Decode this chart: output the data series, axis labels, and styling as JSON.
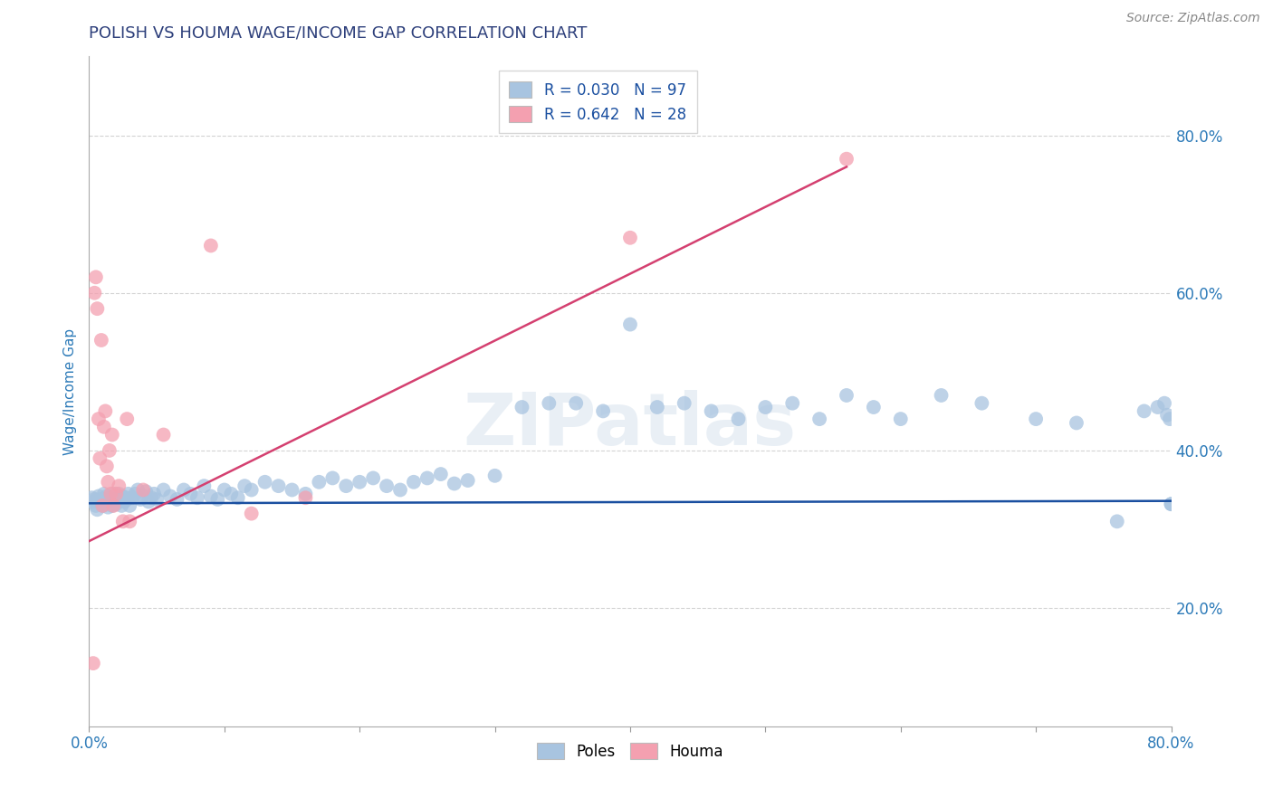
{
  "title": "POLISH VS HOUMA WAGE/INCOME GAP CORRELATION CHART",
  "source": "Source: ZipAtlas.com",
  "ylabel": "Wage/Income Gap",
  "xlim": [
    0.0,
    0.8
  ],
  "ylim": [
    0.05,
    0.9
  ],
  "yticks": [
    0.2,
    0.4,
    0.6,
    0.8
  ],
  "xticks": [
    0.0,
    0.1,
    0.2,
    0.3,
    0.4,
    0.5,
    0.6,
    0.7,
    0.8
  ],
  "xtick_labels": [
    "0.0%",
    "",
    "",
    "",
    "",
    "",
    "",
    "",
    "80.0%"
  ],
  "legend_labels": [
    "Poles",
    "Houma"
  ],
  "legend_R": [
    "R = 0.030",
    "R = 0.642"
  ],
  "legend_N": [
    "N = 97",
    "N = 28"
  ],
  "poles_color": "#a8c4e0",
  "houma_color": "#f4a0b0",
  "poles_line_color": "#1a4fa0",
  "houma_line_color": "#d44070",
  "title_color": "#2c3e7a",
  "tick_color": "#2c7ab8",
  "watermark": "ZIPatlas",
  "background_color": "#ffffff",
  "poles_x": [
    0.002,
    0.003,
    0.004,
    0.005,
    0.006,
    0.007,
    0.008,
    0.009,
    0.01,
    0.011,
    0.012,
    0.013,
    0.014,
    0.015,
    0.016,
    0.017,
    0.018,
    0.019,
    0.02,
    0.021,
    0.022,
    0.023,
    0.024,
    0.025,
    0.026,
    0.027,
    0.028,
    0.029,
    0.03,
    0.032,
    0.034,
    0.036,
    0.038,
    0.04,
    0.042,
    0.044,
    0.046,
    0.048,
    0.05,
    0.055,
    0.06,
    0.065,
    0.07,
    0.075,
    0.08,
    0.085,
    0.09,
    0.095,
    0.1,
    0.105,
    0.11,
    0.115,
    0.12,
    0.13,
    0.14,
    0.15,
    0.16,
    0.17,
    0.18,
    0.19,
    0.2,
    0.21,
    0.22,
    0.23,
    0.24,
    0.25,
    0.26,
    0.27,
    0.28,
    0.3,
    0.32,
    0.34,
    0.36,
    0.38,
    0.4,
    0.42,
    0.44,
    0.46,
    0.48,
    0.5,
    0.52,
    0.54,
    0.56,
    0.58,
    0.6,
    0.63,
    0.66,
    0.7,
    0.73,
    0.76,
    0.78,
    0.79,
    0.795,
    0.797,
    0.799,
    0.8,
    0.8
  ],
  "poles_y": [
    0.34,
    0.335,
    0.338,
    0.33,
    0.325,
    0.342,
    0.338,
    0.332,
    0.33,
    0.345,
    0.338,
    0.342,
    0.328,
    0.335,
    0.34,
    0.33,
    0.345,
    0.338,
    0.332,
    0.34,
    0.345,
    0.338,
    0.33,
    0.342,
    0.335,
    0.34,
    0.338,
    0.345,
    0.33,
    0.34,
    0.345,
    0.35,
    0.338,
    0.342,
    0.348,
    0.335,
    0.34,
    0.345,
    0.338,
    0.35,
    0.342,
    0.338,
    0.35,
    0.345,
    0.34,
    0.355,
    0.342,
    0.338,
    0.35,
    0.345,
    0.34,
    0.355,
    0.35,
    0.36,
    0.355,
    0.35,
    0.345,
    0.36,
    0.365,
    0.355,
    0.36,
    0.365,
    0.355,
    0.35,
    0.36,
    0.365,
    0.37,
    0.358,
    0.362,
    0.368,
    0.455,
    0.46,
    0.46,
    0.45,
    0.56,
    0.455,
    0.46,
    0.45,
    0.44,
    0.455,
    0.46,
    0.44,
    0.47,
    0.455,
    0.44,
    0.47,
    0.46,
    0.44,
    0.435,
    0.31,
    0.45,
    0.455,
    0.46,
    0.445,
    0.44,
    0.332,
    0.332
  ],
  "houma_x": [
    0.003,
    0.004,
    0.005,
    0.006,
    0.007,
    0.008,
    0.009,
    0.01,
    0.011,
    0.012,
    0.013,
    0.014,
    0.015,
    0.016,
    0.017,
    0.018,
    0.02,
    0.022,
    0.025,
    0.028,
    0.03,
    0.04,
    0.055,
    0.09,
    0.12,
    0.16,
    0.4,
    0.56
  ],
  "houma_y": [
    0.13,
    0.6,
    0.62,
    0.58,
    0.44,
    0.39,
    0.54,
    0.33,
    0.43,
    0.45,
    0.38,
    0.36,
    0.4,
    0.345,
    0.42,
    0.33,
    0.345,
    0.355,
    0.31,
    0.44,
    0.31,
    0.35,
    0.42,
    0.66,
    0.32,
    0.34,
    0.67,
    0.77
  ],
  "poles_line_y_at_0": 0.333,
  "poles_line_y_at_80": 0.336,
  "houma_line_y_at_0": 0.285,
  "houma_line_y_at_56": 0.76
}
